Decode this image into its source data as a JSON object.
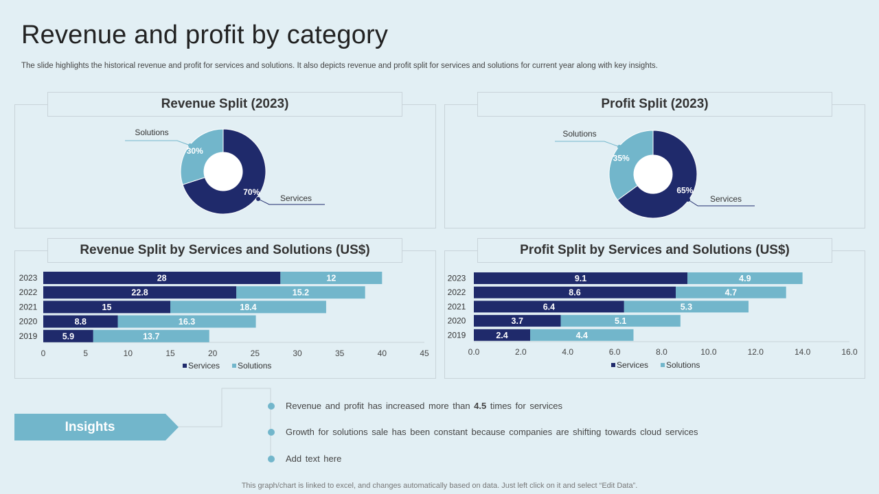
{
  "page": {
    "title": "Revenue and profit by category",
    "subtitle": "The slide highlights the historical revenue and profit for services and solutions. It also depicts revenue and profit split for services and solutions for current year along with key insights.",
    "footer": "This graph/chart is linked to excel, and changes automatically based on data. Just left click on it and select “Edit Data”."
  },
  "colors": {
    "services": "#1f2a6b",
    "solutions": "#72b6cb",
    "background": "#e2eff4",
    "border": "#c8d3d9"
  },
  "insights": {
    "label": "Insights",
    "items": [
      {
        "before": "Revenue  and profit has increased more than ",
        "bold": "4.5",
        "after": " times for services"
      },
      {
        "before": "Growth for solutions sale has been constant because companies are shifting towards cloud services",
        "bold": "",
        "after": ""
      },
      {
        "before": "Add text here",
        "bold": "",
        "after": ""
      }
    ]
  },
  "chart_data": [
    {
      "id": "revenue-split-2023",
      "type": "pie",
      "title": "Revenue Split (2023)",
      "slices": [
        {
          "name": "Services",
          "value": 70,
          "label": "70%"
        },
        {
          "name": "Solutions",
          "value": 30,
          "label": "30%"
        }
      ]
    },
    {
      "id": "profit-split-2023",
      "type": "pie",
      "title": "Profit Split (2023)",
      "slices": [
        {
          "name": "Services",
          "value": 65,
          "label": "65%"
        },
        {
          "name": "Solutions",
          "value": 35,
          "label": "35%"
        }
      ]
    },
    {
      "id": "revenue-split-bars",
      "type": "bar",
      "orientation": "horizontal",
      "stacked": true,
      "title": "Revenue Split by Services and Solutions (US$)",
      "categories": [
        "2023",
        "2022",
        "2021",
        "2020",
        "2019"
      ],
      "series": [
        {
          "name": "Services",
          "values": [
            28,
            22.8,
            15,
            8.8,
            5.9
          ],
          "labels": [
            "28",
            "22.8",
            "15",
            "8.8",
            "5.9"
          ]
        },
        {
          "name": "Solutions",
          "values": [
            12,
            15.2,
            18.4,
            16.3,
            13.7
          ],
          "labels": [
            "12",
            "15.2",
            "18.4",
            "16.3",
            "13.7"
          ]
        }
      ],
      "xlim": [
        0,
        45
      ],
      "ticks": [
        0,
        5,
        10,
        15,
        20,
        25,
        30,
        35,
        40,
        45
      ],
      "tick_labels": [
        "0",
        "5",
        "10",
        "15",
        "20",
        "25",
        "30",
        "35",
        "40",
        "45"
      ],
      "legend": [
        "Services",
        "Solutions"
      ]
    },
    {
      "id": "profit-split-bars",
      "type": "bar",
      "orientation": "horizontal",
      "stacked": true,
      "title": "Profit Split by Services and Solutions (US$)",
      "categories": [
        "2023",
        "2022",
        "2021",
        "2020",
        "2019"
      ],
      "series": [
        {
          "name": "Services",
          "values": [
            9.1,
            8.6,
            6.4,
            3.7,
            2.4
          ],
          "labels": [
            "9.1",
            "8.6",
            "6.4",
            "3.7",
            "2.4"
          ]
        },
        {
          "name": "Solutions",
          "values": [
            4.9,
            4.7,
            5.3,
            5.1,
            4.4
          ],
          "labels": [
            "4.9",
            "4.7",
            "5.3",
            "5.1",
            "4.4"
          ]
        }
      ],
      "xlim": [
        0,
        16
      ],
      "ticks": [
        0,
        2,
        4,
        6,
        8,
        10,
        12,
        14,
        16
      ],
      "tick_labels": [
        "0.0",
        "2.0",
        "4.0",
        "6.0",
        "8.0",
        "10.0",
        "12.0",
        "14.0",
        "16.0"
      ],
      "legend": [
        "Services",
        "Solutions"
      ]
    }
  ]
}
